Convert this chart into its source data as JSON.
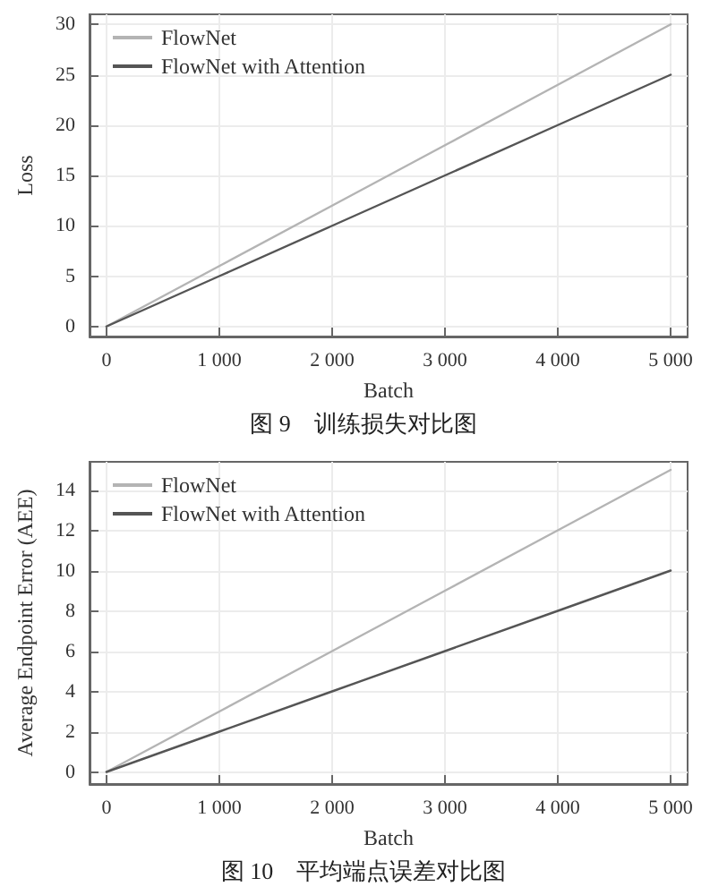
{
  "chart_data": [
    {
      "type": "line",
      "title": "图 9　训练损失对比图",
      "xlabel": "Batch",
      "ylabel": "Loss",
      "x": [
        0,
        1000,
        2000,
        3000,
        4000,
        5000
      ],
      "series": [
        {
          "name": "FlowNet",
          "color": "#b4b4b4",
          "values": [
            0,
            6,
            12,
            18,
            24,
            30
          ]
        },
        {
          "name": "FlowNet with Attention",
          "color": "#555555",
          "values": [
            0,
            5,
            10,
            15,
            20,
            25
          ]
        }
      ],
      "xlim": [
        -150,
        5150
      ],
      "xticks": [
        0,
        {
          "value": 1000,
          "label": "1 000"
        },
        {
          "value": 2000,
          "label": "2 000"
        },
        {
          "value": 3000,
          "label": "3 000"
        },
        {
          "value": 4000,
          "label": "4 000"
        },
        {
          "value": 5000,
          "label": "5 000"
        }
      ],
      "ylim": [
        -1,
        31
      ],
      "yticks": [
        0,
        5,
        10,
        15,
        20,
        25,
        30
      ],
      "legend": "top left",
      "grid": true,
      "line_style": "solid",
      "marker": "none"
    },
    {
      "type": "line",
      "title": "图 10　平均端点误差对比图",
      "xlabel": "Batch",
      "ylabel": "Average Endpoint Error (AEE)",
      "x": [
        0,
        1000,
        2000,
        3000,
        4000,
        5000
      ],
      "series": [
        {
          "name": "FlowNet",
          "color": "#b4b4b4",
          "values": [
            0,
            3,
            6,
            9,
            12,
            15
          ]
        },
        {
          "name": "FlowNet with Attention",
          "color": "#555555",
          "values": [
            0,
            2,
            4,
            6,
            8,
            10
          ]
        }
      ],
      "xlim": [
        -150,
        5150
      ],
      "xticks": [
        0,
        {
          "value": 1000,
          "label": "1 000"
        },
        {
          "value": 2000,
          "label": "2 000"
        },
        {
          "value": 3000,
          "label": "3 000"
        },
        {
          "value": 4000,
          "label": "4 000"
        },
        {
          "value": 5000,
          "label": "5 000"
        }
      ],
      "ylim": [
        -0.6,
        15.4
      ],
      "yticks": [
        0,
        2,
        4,
        6,
        8,
        10,
        12,
        14
      ],
      "legend": "top left",
      "grid": true,
      "line_style": "solid",
      "marker": "none"
    }
  ]
}
